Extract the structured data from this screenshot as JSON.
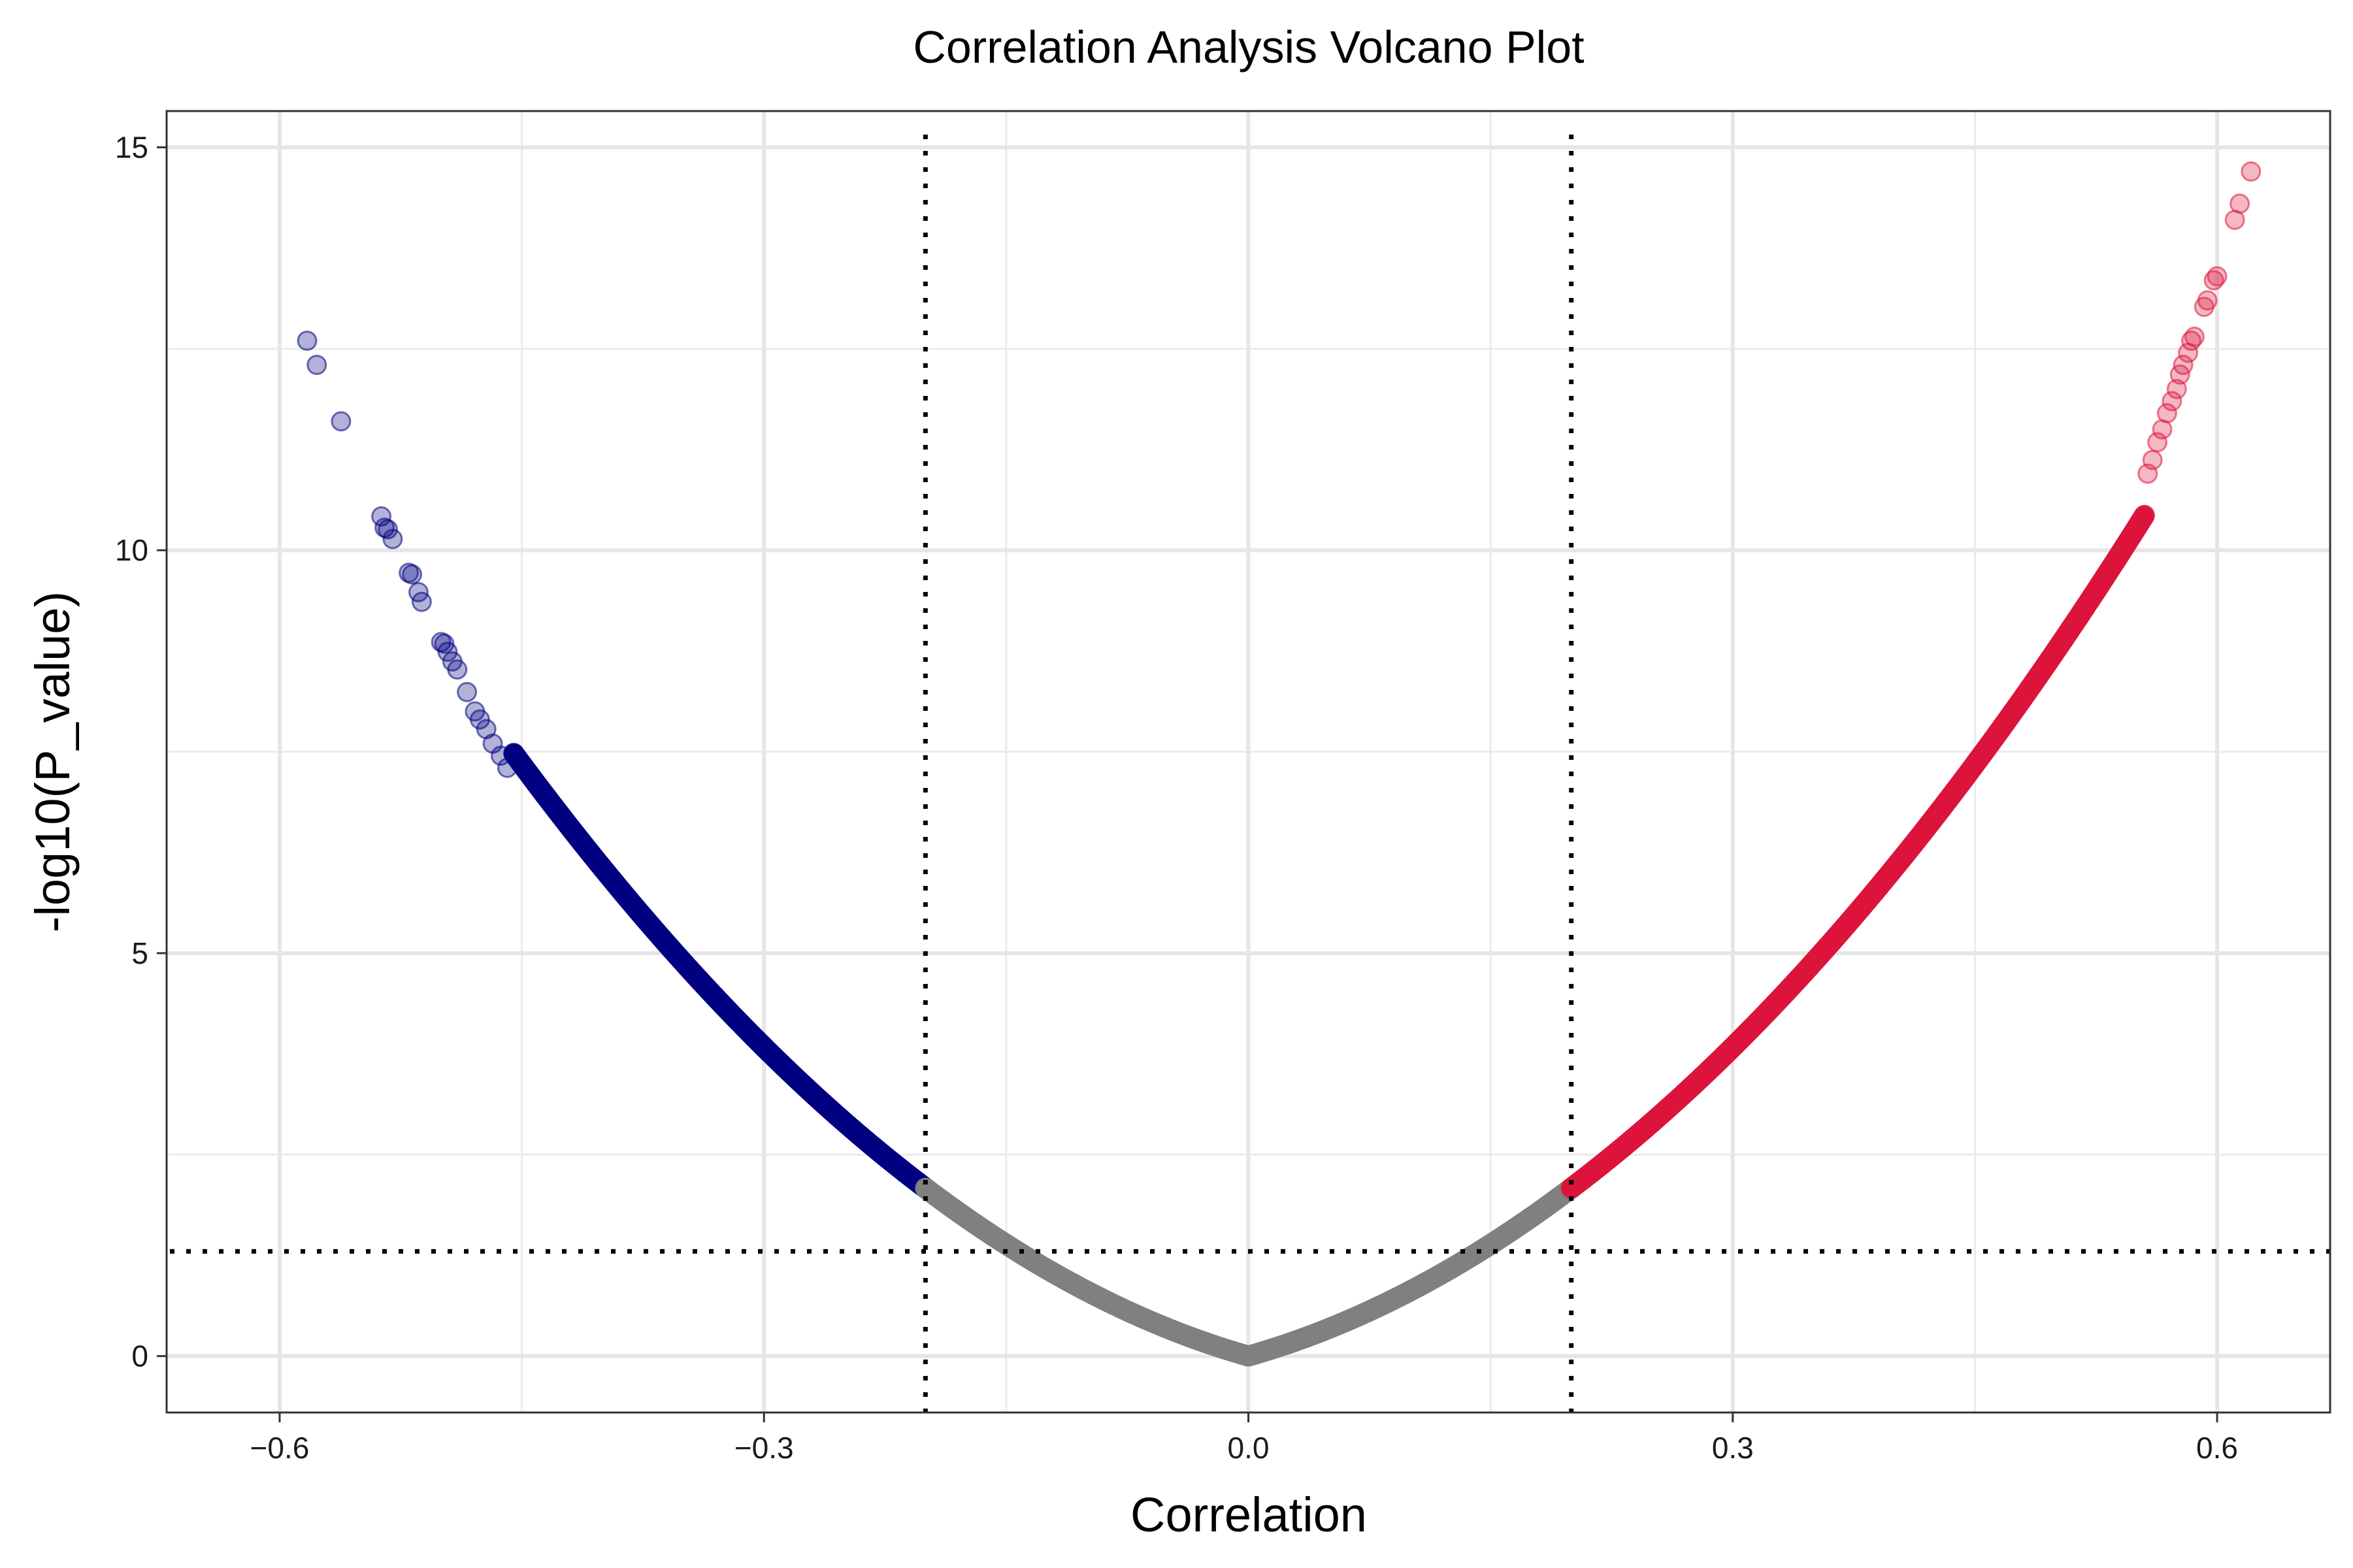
{
  "chart_data": {
    "type": "scatter",
    "title": "Correlation Analysis Volcano Plot",
    "xlabel": "Correlation",
    "ylabel": "-log10(P_value)",
    "xlim": [
      -0.67,
      0.67
    ],
    "ylim": [
      -0.7,
      15.45
    ],
    "x_ticks": [
      -0.6,
      -0.3,
      0.0,
      0.3,
      0.6
    ],
    "x_tick_labels": [
      "−0.6",
      "−0.3",
      "0.0",
      "0.3",
      "0.6"
    ],
    "y_ticks": [
      0,
      5,
      10,
      15
    ],
    "y_tick_labels": [
      "0",
      "5",
      "10",
      "15"
    ],
    "x_minor_ticks": [
      -0.45,
      -0.15,
      0.15,
      0.45
    ],
    "y_minor_ticks": [
      2.5,
      7.5,
      12.5
    ],
    "grid": true,
    "thresholds": {
      "correlation": [
        -0.2,
        0.2
      ],
      "neg_log10_p": 1.3
    },
    "colors": {
      "negative": "#000080",
      "neutral": "#808080",
      "positive": "#DC143C"
    },
    "series": [
      {
        "category": "negative",
        "dense_from": -0.455,
        "dense_to": -0.2,
        "sparse_points": [
          [
            -0.583,
            12.6
          ],
          [
            -0.577,
            12.3
          ],
          [
            -0.562,
            11.6
          ],
          [
            -0.537,
            10.42
          ],
          [
            -0.535,
            10.28
          ],
          [
            -0.533,
            10.26
          ],
          [
            -0.53,
            10.14
          ],
          [
            -0.52,
            9.72
          ],
          [
            -0.518,
            9.7
          ],
          [
            -0.514,
            9.48
          ],
          [
            -0.512,
            9.36
          ],
          [
            -0.5,
            8.86
          ],
          [
            -0.498,
            8.84
          ],
          [
            -0.496,
            8.74
          ],
          [
            -0.493,
            8.62
          ],
          [
            -0.49,
            8.52
          ],
          [
            -0.484,
            8.24
          ],
          [
            -0.479,
            8.0
          ],
          [
            -0.476,
            7.9
          ],
          [
            -0.472,
            7.78
          ],
          [
            -0.468,
            7.6
          ],
          [
            -0.463,
            7.45
          ],
          [
            -0.459,
            7.3
          ]
        ]
      },
      {
        "category": "neutral",
        "dense_from": -0.2,
        "dense_to": 0.2,
        "sparse_points": []
      },
      {
        "category": "positive",
        "dense_from": 0.2,
        "dense_to": 0.555,
        "sparse_points": [
          [
            0.621,
            14.7
          ],
          [
            0.614,
            14.3
          ],
          [
            0.611,
            14.1
          ],
          [
            0.6,
            13.4
          ],
          [
            0.598,
            13.35
          ],
          [
            0.594,
            13.1
          ],
          [
            0.592,
            13.02
          ],
          [
            0.586,
            12.65
          ],
          [
            0.584,
            12.6
          ],
          [
            0.582,
            12.45
          ],
          [
            0.579,
            12.3
          ],
          [
            0.577,
            12.18
          ],
          [
            0.575,
            12.0
          ],
          [
            0.572,
            11.85
          ],
          [
            0.569,
            11.7
          ],
          [
            0.566,
            11.5
          ],
          [
            0.563,
            11.34
          ],
          [
            0.56,
            11.12
          ],
          [
            0.557,
            10.95
          ]
        ]
      }
    ]
  }
}
